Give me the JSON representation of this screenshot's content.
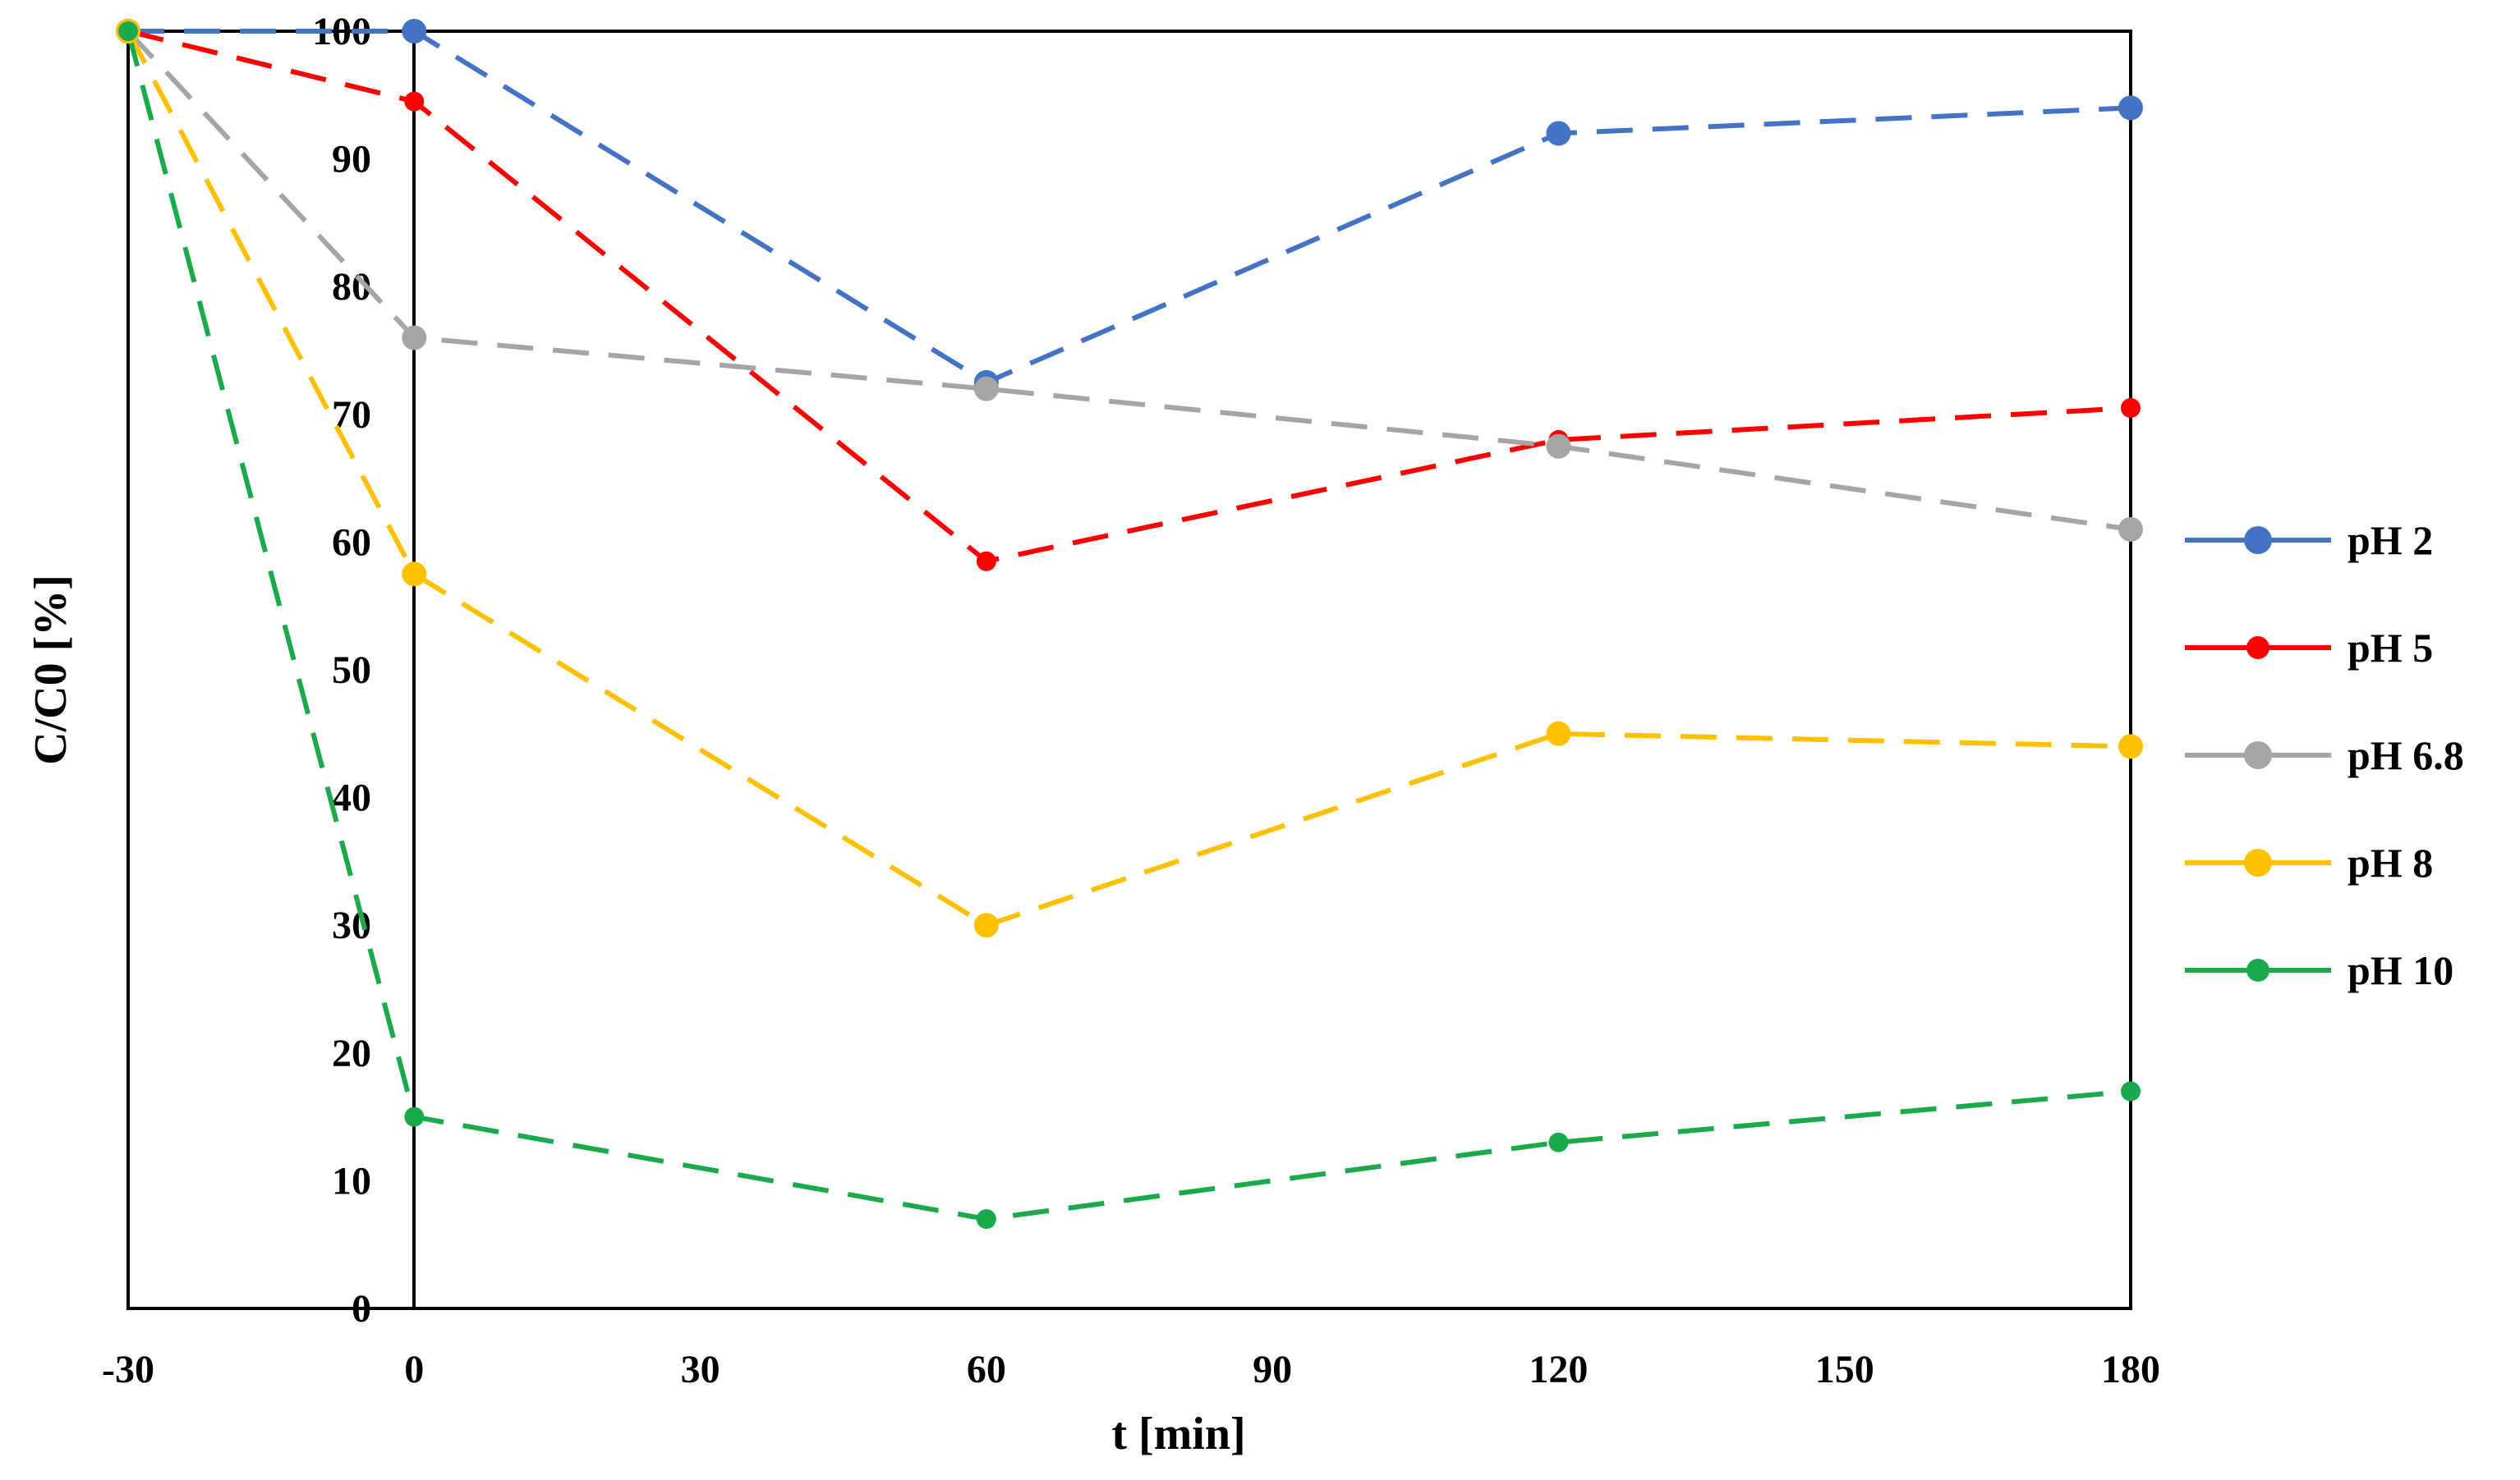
{
  "chart_data": {
    "type": "line",
    "title": "",
    "xlabel": "t [min]",
    "ylabel": "C/C0 [%]",
    "xlim": [
      -30,
      180
    ],
    "ylim": [
      0,
      100
    ],
    "xticks": [
      -30,
      0,
      30,
      60,
      90,
      120,
      150,
      180
    ],
    "yticks": [
      0,
      10,
      20,
      30,
      40,
      50,
      60,
      70,
      80,
      90,
      100
    ],
    "x": [
      -30,
      0,
      60,
      120,
      180
    ],
    "legend_position": "right",
    "series": [
      {
        "name": "pH 2",
        "color": "#4472C4",
        "values": [
          100,
          100,
          72.5,
          92,
          94
        ]
      },
      {
        "name": "pH 5",
        "color": "#FF0000",
        "values": [
          100,
          94.5,
          58.5,
          68,
          70.5
        ]
      },
      {
        "name": "pH 6.8",
        "color": "#A5A5A5",
        "values": [
          100,
          76,
          72,
          67.5,
          61
        ]
      },
      {
        "name": "pH 8",
        "color": "#FFC000",
        "values": [
          100,
          57.5,
          30,
          45,
          44
        ]
      },
      {
        "name": "pH 10",
        "color": "#1BAA4B",
        "values": [
          100,
          15,
          7,
          13,
          17
        ]
      }
    ]
  }
}
